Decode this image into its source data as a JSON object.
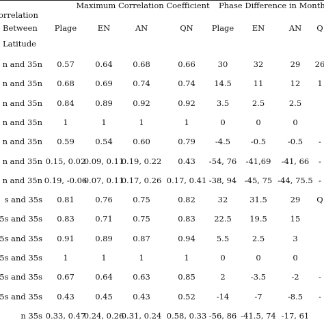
{
  "header": {
    "stub_lines": [
      "orrelation",
      "Between",
      "Latitude"
    ],
    "group1": "Maximum Correlation Coefficient",
    "group2": "Phase Difference in Months",
    "cols": [
      "Plage",
      "EN",
      "AN",
      "QN",
      "Plage",
      "EN",
      "AN",
      "Q"
    ]
  },
  "rows": [
    {
      "label": "n and 35n",
      "cells": [
        "0.57",
        "0.64",
        "0.68",
        "0.66",
        "30",
        "32",
        "29",
        "26"
      ]
    },
    {
      "label": "n and 35n",
      "cells": [
        "0.68",
        "0.69",
        "0.74",
        "0.74",
        "14.5",
        "11",
        "12",
        "1"
      ]
    },
    {
      "label": "n and 35n",
      "cells": [
        "0.84",
        "0.89",
        "0.92",
        "0.92",
        "3.5",
        "2.5",
        "2.5",
        ""
      ]
    },
    {
      "label": "n and 35n",
      "cells": [
        "1",
        "1",
        "1",
        "1",
        "0",
        "0",
        "0",
        ""
      ]
    },
    {
      "label": "n and 35n",
      "cells": [
        "0.59",
        "0.54",
        "0.60",
        "0.79",
        "-4.5",
        "-0.5",
        "-0.5",
        "-"
      ]
    },
    {
      "label": "n and 35n",
      "cells": [
        "0.15, 0.02",
        "0.09, 0.11",
        "0.19, 0.22",
        "0.43",
        "-54, 76",
        "-41,69",
        "-41, 66",
        "-"
      ]
    },
    {
      "label": "n and 35n",
      "cells": [
        "0.19, -0.06",
        "0.07, 0.11",
        "0.17, 0.26",
        "0.17, 0.41",
        "-38, 94",
        "-45, 75",
        "-44, 75.5",
        "-"
      ]
    },
    {
      "label": "s and 35s",
      "cells": [
        "0.81",
        "0.76",
        "0.75",
        "0.82",
        "32",
        "31.5",
        "29",
        "Q"
      ]
    },
    {
      "label": "5s and 35s",
      "cells": [
        "0.83",
        "0.71",
        "0.75",
        "0.83",
        "22.5",
        "19.5",
        "15",
        ""
      ]
    },
    {
      "label": "5s and 35s",
      "cells": [
        "0.91",
        "0.89",
        "0.87",
        "0.94",
        "5.5",
        "2.5",
        "3",
        ""
      ]
    },
    {
      "label": "5s and 35s",
      "cells": [
        "1",
        "1",
        "1",
        "1",
        "0",
        "0",
        "0",
        ""
      ]
    },
    {
      "label": "5s and 35s",
      "cells": [
        "0.67",
        "0.64",
        "0.63",
        "0.85",
        "2",
        "-3.5",
        "-2",
        "-"
      ]
    },
    {
      "label": "5s and 35s",
      "cells": [
        "0.43",
        "0.45",
        "0.43",
        "0.52",
        "-14",
        "-7",
        "-8.5",
        "-"
      ]
    },
    {
      "label": "n 35s",
      "cells": [
        "0.33, 0.47",
        "0.24, 0.26",
        "0.31, 0.24",
        "0.58, 0.33",
        "-56, 86",
        "-41.5, 74",
        "-17, 61",
        ""
      ]
    }
  ]
}
